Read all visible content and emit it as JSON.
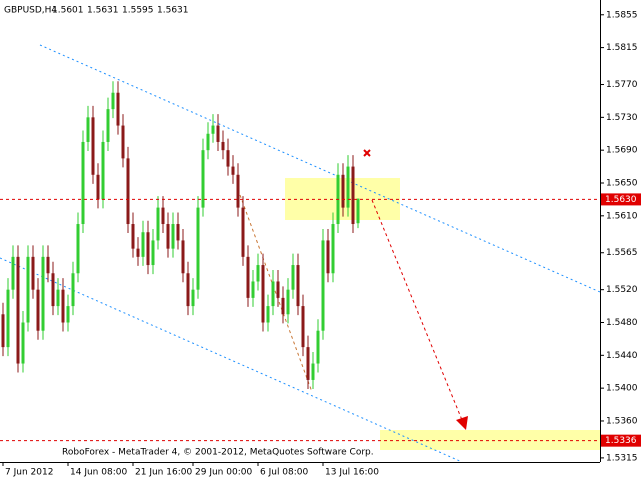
{
  "chart_data": {
    "type": "candlestick",
    "title": "GBPUSD,H4",
    "annotation": "RoboForex - MetaTrader 4, © 2001-2012, MetaQuotes Software Corp.",
    "up_color": "#32cd32",
    "down_color": "#8b1a1a",
    "open": [
      1.549,
      1.545,
      1.552,
      1.556,
      1.543,
      1.548,
      1.556,
      1.552,
      1.547,
      1.556,
      1.554,
      1.55,
      1.552,
      1.548,
      1.55,
      1.554,
      1.56,
      1.57,
      1.573,
      1.566,
      1.563,
      1.57,
      1.574,
      1.576,
      1.572,
      1.568,
      1.56,
      1.557,
      1.556,
      1.559,
      1.555,
      1.558,
      1.562,
      1.56,
      1.557,
      1.56,
      1.558,
      1.554,
      1.55,
      1.552,
      1.562,
      1.569,
      1.571,
      1.572,
      1.57,
      1.569,
      1.567,
      1.566,
      1.562,
      1.556,
      1.551,
      1.553,
      1.555,
      1.548,
      1.55,
      1.553,
      1.551,
      1.549,
      1.552,
      1.555,
      1.55,
      1.545,
      1.541,
      1.543,
      1.547,
      1.558,
      1.554,
      1.56,
      1.566,
      1.562,
      1.567,
      1.5601
    ],
    "high": [
      1.5504,
      1.5534,
      1.5574,
      1.5574,
      1.5494,
      1.5574,
      1.5574,
      1.5534,
      1.5574,
      1.5574,
      1.5554,
      1.5534,
      1.5534,
      1.5514,
      1.5554,
      1.5614,
      1.5714,
      1.5744,
      1.5744,
      1.5674,
      1.5714,
      1.5754,
      1.5774,
      1.5774,
      1.5734,
      1.5694,
      1.5614,
      1.5584,
      1.5604,
      1.5604,
      1.5594,
      1.5634,
      1.5634,
      1.5614,
      1.5614,
      1.5614,
      1.5594,
      1.5554,
      1.5534,
      1.5634,
      1.5704,
      1.5724,
      1.5734,
      1.5734,
      1.5714,
      1.5704,
      1.5684,
      1.5674,
      1.5634,
      1.5574,
      1.5544,
      1.5564,
      1.5564,
      1.5514,
      1.5544,
      1.5544,
      1.5524,
      1.5534,
      1.5564,
      1.5564,
      1.5514,
      1.5464,
      1.5444,
      1.5484,
      1.5594,
      1.5594,
      1.5614,
      1.5674,
      1.5674,
      1.5684,
      1.5684,
      1.5631
    ],
    "low": [
      1.5439,
      1.5439,
      1.5509,
      1.5419,
      1.5419,
      1.5469,
      1.5509,
      1.5459,
      1.5459,
      1.5529,
      1.5489,
      1.5489,
      1.5469,
      1.5469,
      1.5489,
      1.5529,
      1.5589,
      1.5689,
      1.5649,
      1.5619,
      1.5619,
      1.5689,
      1.5729,
      1.5709,
      1.5669,
      1.5589,
      1.5559,
      1.5549,
      1.5549,
      1.5539,
      1.5539,
      1.5569,
      1.5589,
      1.5559,
      1.5559,
      1.5569,
      1.5529,
      1.5489,
      1.5489,
      1.5509,
      1.5609,
      1.5679,
      1.5699,
      1.5689,
      1.5679,
      1.5659,
      1.5649,
      1.5609,
      1.5549,
      1.5499,
      1.5499,
      1.5519,
      1.5469,
      1.5469,
      1.5489,
      1.5499,
      1.5479,
      1.5479,
      1.5509,
      1.5489,
      1.5439,
      1.5399,
      1.5399,
      1.5419,
      1.5459,
      1.5529,
      1.5529,
      1.5589,
      1.5609,
      1.5609,
      1.5589,
      1.5595
    ],
    "close": [
      1.545,
      1.552,
      1.556,
      1.543,
      1.548,
      1.556,
      1.552,
      1.547,
      1.556,
      1.554,
      1.55,
      1.552,
      1.548,
      1.55,
      1.554,
      1.56,
      1.57,
      1.573,
      1.566,
      1.563,
      1.57,
      1.574,
      1.576,
      1.572,
      1.568,
      1.56,
      1.557,
      1.556,
      1.559,
      1.555,
      1.558,
      1.562,
      1.56,
      1.557,
      1.56,
      1.558,
      1.554,
      1.55,
      1.552,
      1.562,
      1.569,
      1.571,
      1.572,
      1.57,
      1.569,
      1.567,
      1.566,
      1.562,
      1.556,
      1.551,
      1.553,
      1.555,
      1.548,
      1.55,
      1.553,
      1.551,
      1.549,
      1.552,
      1.555,
      1.55,
      1.545,
      1.541,
      1.543,
      1.547,
      1.558,
      1.554,
      1.56,
      1.566,
      1.562,
      1.567,
      1.56,
      1.5631
    ],
    "xlim": [
      -0.6,
      119.4
    ],
    "xticks": [
      {
        "value": 0,
        "label": "7 Jun 2012"
      },
      {
        "value": 13,
        "label": "14 Jun 08:00"
      },
      {
        "value": 26,
        "label": "21 Jun 16:00"
      },
      {
        "value": 38,
        "label": "29 Jun 00:00"
      },
      {
        "value": 51,
        "label": "6 Jul 08:00"
      },
      {
        "value": 64,
        "label": "13 Jul 16:00"
      }
    ],
    "ylim": [
      1.531,
      1.5873
    ],
    "yticks": [
      1.5855,
      1.5815,
      {
        "value": 1.577,
        "label": "1.5770"
      },
      {
        "value": 1.573,
        "label": "1.5730"
      },
      {
        "value": 1.569,
        "label": "1.5690"
      },
      {
        "value": 1.565,
        "label": "1.5650"
      },
      {
        "value": 1.561,
        "label": "1.5610"
      },
      1.5565,
      {
        "value": 1.552,
        "label": "1.5520"
      },
      {
        "value": 1.548,
        "label": "1.5480"
      },
      {
        "value": 1.544,
        "label": "1.5440"
      },
      {
        "value": 1.54,
        "label": "1.5400"
      },
      {
        "value": 1.536,
        "label": "1.5360"
      },
      1.5315
    ],
    "price_lines": [
      {
        "value": 1.563,
        "label": "1.5630"
      },
      {
        "value": 1.5336,
        "label": "1.5336"
      }
    ]
  }
}
